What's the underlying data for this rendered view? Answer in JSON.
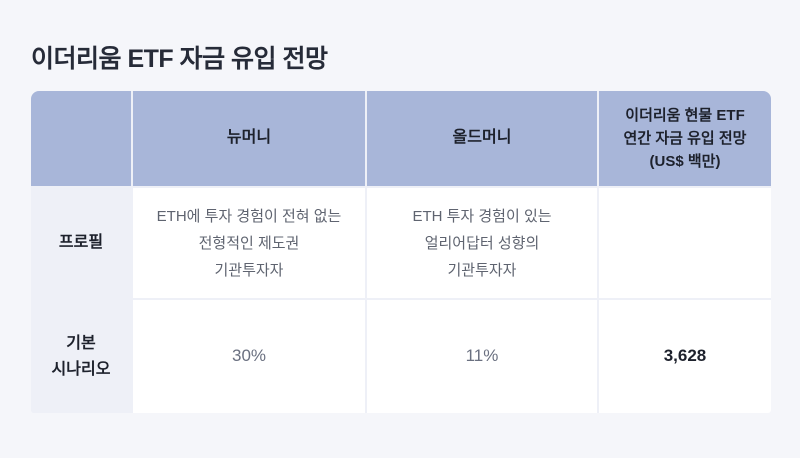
{
  "title": "이더리움 ETF 자금 유입 전망",
  "table": {
    "header": {
      "corner": "",
      "new_money": "뉴머니",
      "old_money": "올드머니",
      "forecast": "이더리움 현물 ETF\n연간 자금 유입 전망\n(US$ 백만)"
    },
    "rows": {
      "profile": {
        "label": "프로필",
        "new_money": "ETH에 투자 경험이 전혀 없는\n전형적인 제도권\n기관투자자",
        "old_money": "ETH 투자 경험이 있는\n얼리어답터 성향의\n기관투자자",
        "forecast": ""
      },
      "base_scenario": {
        "label": "기본\n시나리오",
        "new_money": "30%",
        "old_money": "11%",
        "forecast": "3,628"
      }
    }
  },
  "colors": {
    "page_bg": "#f5f6fa",
    "header_bg": "#a8b6d9",
    "label_bg": "#eef0f7",
    "cell_bg": "#ffffff",
    "grid_line": "#eef0f7",
    "title_text": "#262b38",
    "dark_text": "#1d212c",
    "muted_text": "#5f6470"
  },
  "chart_data": {
    "type": "table",
    "title": "이더리움 ETF 자금 유입 전망",
    "columns": [
      "",
      "뉴머니",
      "올드머니",
      "이더리움 현물 ETF 연간 자금 유입 전망 (US$ 백만)"
    ],
    "rows": [
      [
        "프로필",
        "ETH에 투자 경험이 전혀 없는 전형적인 제도권 기관투자자",
        "ETH 투자 경험이 있는 얼리어답터 성향의 기관투자자",
        ""
      ],
      [
        "기본 시나리오",
        "30%",
        "11%",
        "3,628"
      ]
    ]
  }
}
